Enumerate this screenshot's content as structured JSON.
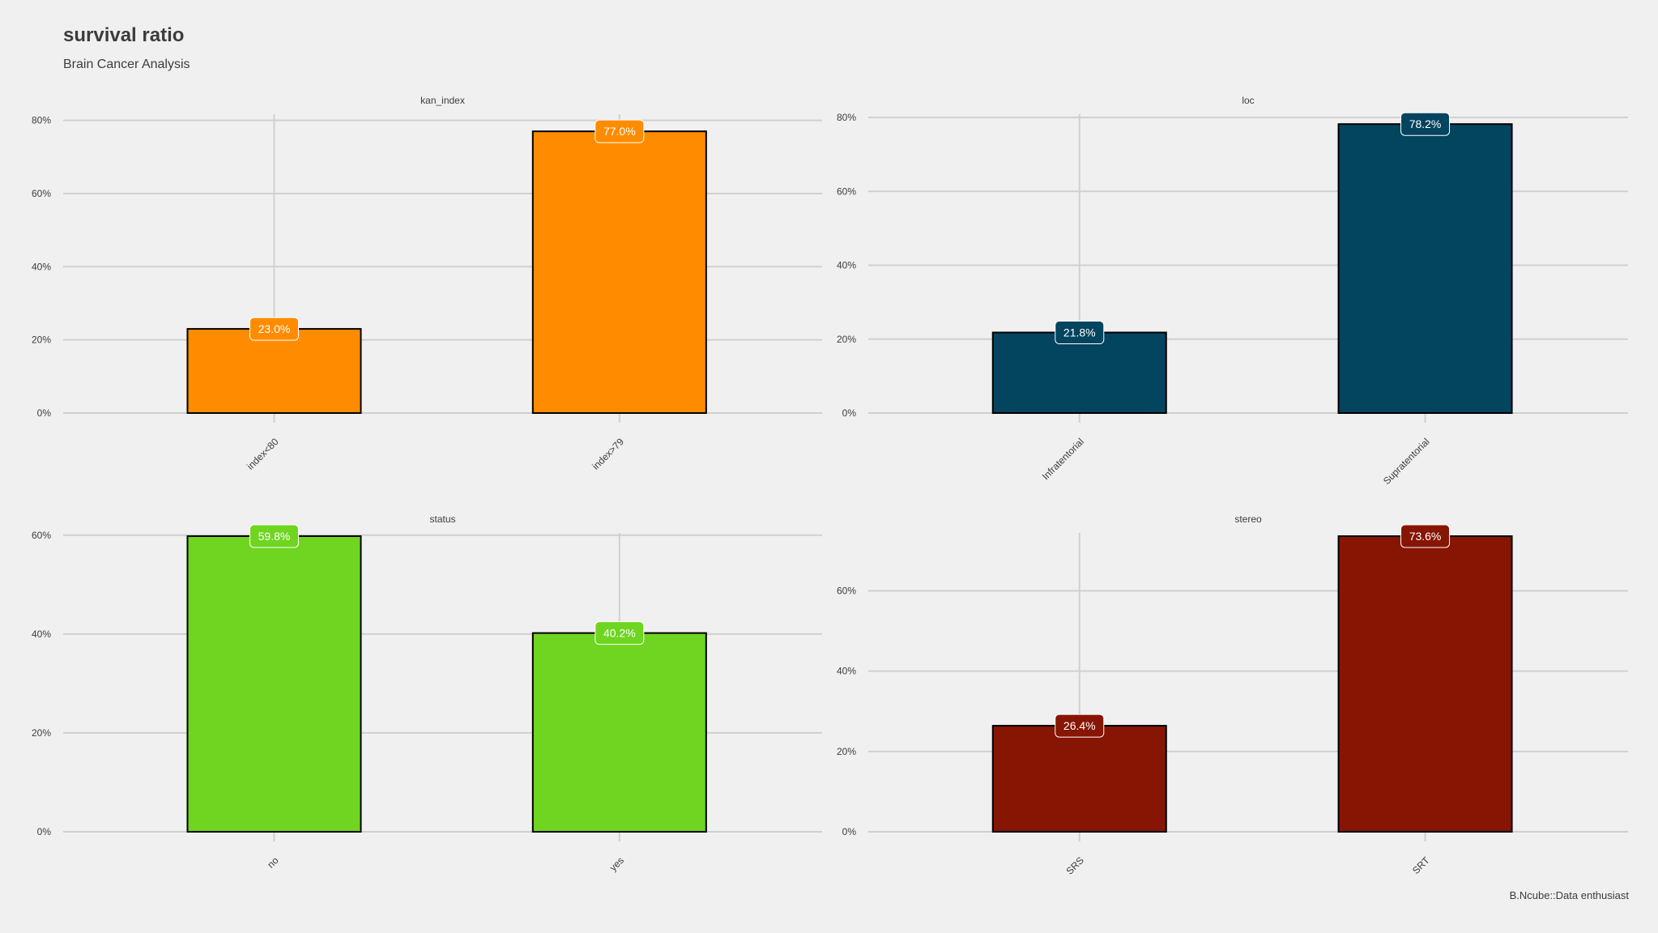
{
  "title": "survival ratio",
  "subtitle": "Brain Cancer Analysis",
  "caption": "B.Ncube::Data enthusiast",
  "chart_data": [
    {
      "type": "bar",
      "facet": "kan_index",
      "categories": [
        "index<80",
        "index>79"
      ],
      "values": [
        23.0,
        77.0
      ],
      "labels": [
        "23.0%",
        "77.0%"
      ],
      "yticks": [
        0,
        20,
        40,
        60,
        80
      ],
      "ytick_labels": [
        "0%",
        "20%",
        "40%",
        "60%",
        "80%"
      ],
      "ylim": [
        0,
        80.8
      ],
      "color": "#ff8c00",
      "grid": true
    },
    {
      "type": "bar",
      "facet": "loc",
      "categories": [
        "Infratentorial",
        "Supratentorial"
      ],
      "values": [
        21.8,
        78.2
      ],
      "labels": [
        "21.8%",
        "78.2%"
      ],
      "yticks": [
        0,
        20,
        40,
        60,
        80
      ],
      "ytick_labels": [
        "0%",
        "20%",
        "40%",
        "60%",
        "80%"
      ],
      "ylim": [
        0,
        80
      ],
      "color": "#03445f",
      "grid": true
    },
    {
      "type": "bar",
      "facet": "status",
      "categories": [
        "no",
        "yes"
      ],
      "values": [
        59.8,
        40.2
      ],
      "labels": [
        "59.8%",
        "40.2%"
      ],
      "yticks": [
        0,
        20,
        40,
        60
      ],
      "ytick_labels": [
        "0%",
        "20%",
        "40%",
        "60%"
      ],
      "ylim": [
        0,
        59.8
      ],
      "color": "#6fd521",
      "grid": true
    },
    {
      "type": "bar",
      "facet": "stereo",
      "categories": [
        "SRS",
        "SRT"
      ],
      "values": [
        26.4,
        73.6
      ],
      "labels": [
        "26.4%",
        "73.6%"
      ],
      "yticks": [
        0,
        20,
        40,
        60
      ],
      "ytick_labels": [
        "0%",
        "20%",
        "40%",
        "60%"
      ],
      "ylim": [
        0,
        73.6
      ],
      "color": "#861503",
      "grid": true
    }
  ]
}
